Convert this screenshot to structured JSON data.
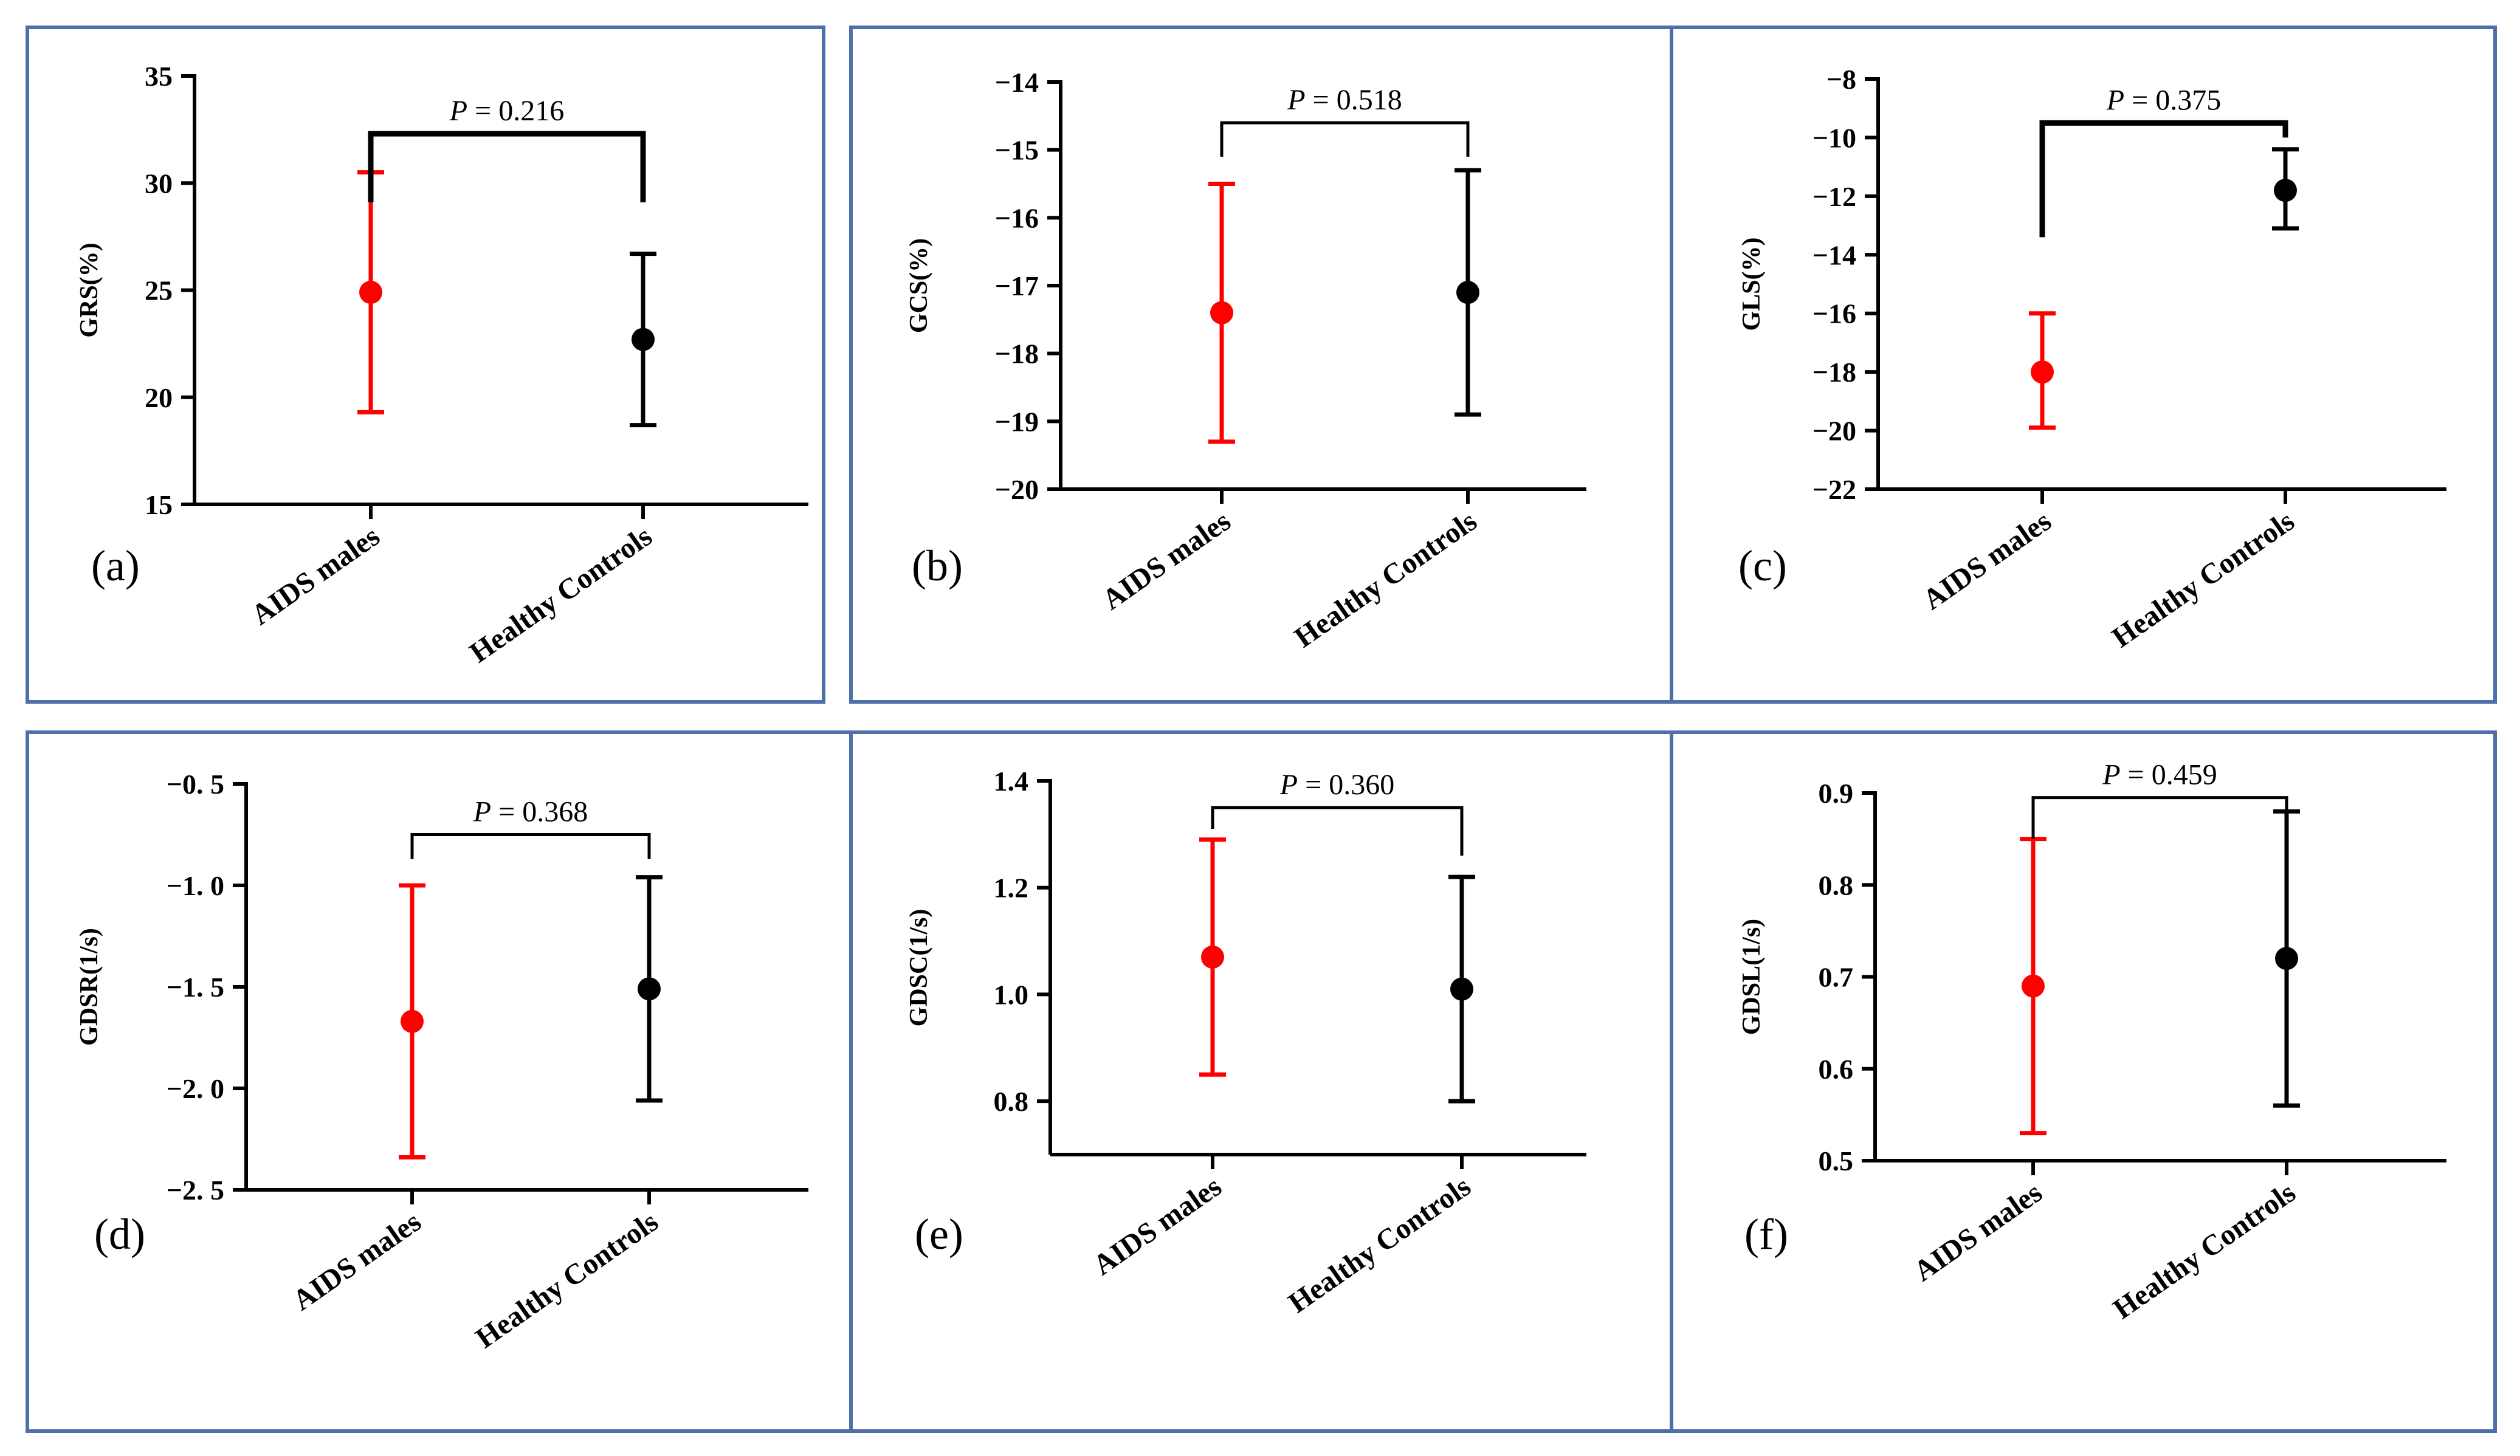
{
  "chart_data": [
    {
      "type": "scatter",
      "panel_label": "(a)",
      "ylabel": "GRS(%)",
      "ylim": [
        15,
        35
      ],
      "yticks": [
        15,
        20,
        25,
        30,
        35
      ],
      "ytick_labels": [
        "15",
        "20",
        "25",
        "30",
        "35"
      ],
      "categories": [
        "AIDS males",
        "Healthy Controls"
      ],
      "series": [
        {
          "name": "AIDS males",
          "color": "#ff0000",
          "mean": 24.9,
          "lower": 19.3,
          "upper": 30.5
        },
        {
          "name": "Healthy Controls",
          "color": "#000000",
          "mean": 22.7,
          "lower": 18.7,
          "upper": 26.7
        }
      ],
      "comparison": {
        "label": "P = 0.216",
        "left_end": 29.1,
        "right_end": 29.1,
        "top": 32.3
      }
    },
    {
      "type": "scatter",
      "panel_label": "(b)",
      "ylabel": "GCS(%)",
      "ylim": [
        -20,
        -14
      ],
      "yticks": [
        -20,
        -19,
        -18,
        -17,
        -16,
        -15,
        -14
      ],
      "ytick_labels": [
        "-20",
        "-19",
        "-18",
        "-17",
        "-16",
        "-15",
        "-14"
      ],
      "categories": [
        "AIDS males",
        "Healthy Controls"
      ],
      "series": [
        {
          "name": "AIDS males",
          "color": "#ff0000",
          "mean": -17.4,
          "lower": -19.3,
          "upper": -15.5
        },
        {
          "name": "Healthy Controls",
          "color": "#000000",
          "mean": -17.1,
          "lower": -18.9,
          "upper": -15.3
        }
      ],
      "comparison": {
        "label": "P = 0.518",
        "left_end": -15.1,
        "right_end": -15.1,
        "top": -14.6
      }
    },
    {
      "type": "scatter",
      "panel_label": "(c)",
      "ylabel": "GLS(%)",
      "ylim": [
        -22,
        -8
      ],
      "yticks": [
        -22,
        -20,
        -18,
        -16,
        -14,
        -12,
        -10,
        -8
      ],
      "ytick_labels": [
        "-22",
        "-20",
        "-18",
        "-16",
        "-14",
        "-12",
        "-10",
        "-8"
      ],
      "categories": [
        "AIDS males",
        "Healthy Controls"
      ],
      "series": [
        {
          "name": "AIDS males",
          "color": "#ff0000",
          "mean": -18.0,
          "lower": -19.9,
          "upper": -16.0
        },
        {
          "name": "Healthy Controls",
          "color": "#000000",
          "mean": -11.8,
          "lower": -13.1,
          "upper": -10.4
        }
      ],
      "comparison": {
        "label": "P = 0.375",
        "left_end": -13.4,
        "right_end": -10.0,
        "top": -9.5
      }
    },
    {
      "type": "scatter",
      "panel_label": "(d)",
      "ylabel": "GDSR(1/s)",
      "ylim": [
        -2.5,
        -0.5
      ],
      "yticks": [
        -2.5,
        -2.0,
        -1.5,
        -1.0,
        -0.5
      ],
      "ytick_labels": [
        "-2. 5",
        "-2. 0",
        "-1. 5",
        "-1. 0",
        "-0. 5"
      ],
      "categories": [
        "AIDS males",
        "Healthy Controls"
      ],
      "series": [
        {
          "name": "AIDS males",
          "color": "#ff0000",
          "mean": -1.67,
          "lower": -2.34,
          "upper": -1.0
        },
        {
          "name": "Healthy Controls",
          "color": "#000000",
          "mean": -1.51,
          "lower": -2.06,
          "upper": -0.96
        }
      ],
      "comparison": {
        "label": "P = 0.368",
        "left_end": -0.87,
        "right_end": -0.87,
        "top": -0.75
      }
    },
    {
      "type": "scatter",
      "panel_label": "(e)",
      "ylabel": "GDSC(1/s)",
      "ylim": [
        0.7,
        1.4
      ],
      "yticks": [
        0.8,
        1.0,
        1.2,
        1.4
      ],
      "ytick_labels": [
        "0.8",
        "1.0",
        "1.2",
        "1.4"
      ],
      "categories": [
        "AIDS males",
        "Healthy Controls"
      ],
      "series": [
        {
          "name": "AIDS males",
          "color": "#ff0000",
          "mean": 1.07,
          "lower": 0.85,
          "upper": 1.29
        },
        {
          "name": "Healthy Controls",
          "color": "#000000",
          "mean": 1.01,
          "lower": 0.8,
          "upper": 1.22
        }
      ],
      "comparison": {
        "label": "P = 0.360",
        "left_end": 1.31,
        "right_end": 1.26,
        "top": 1.35
      }
    },
    {
      "type": "scatter",
      "panel_label": "(f)",
      "ylabel": "GDSL(1/s)",
      "ylim": [
        0.5,
        0.9
      ],
      "yticks": [
        0.5,
        0.6,
        0.7,
        0.8,
        0.9
      ],
      "ytick_labels": [
        "0.5",
        "0.6",
        "0.7",
        "0.8",
        "0.9"
      ],
      "categories": [
        "AIDS males",
        "Healthy Controls"
      ],
      "series": [
        {
          "name": "AIDS males",
          "color": "#ff0000",
          "mean": 0.69,
          "lower": 0.53,
          "upper": 0.85
        },
        {
          "name": "Healthy Controls",
          "color": "#000000",
          "mean": 0.72,
          "lower": 0.56,
          "upper": 0.88
        }
      ],
      "comparison": {
        "label": "P = 0.459",
        "left_end": 0.85,
        "right_end": 0.88,
        "top": 0.895
      }
    }
  ]
}
